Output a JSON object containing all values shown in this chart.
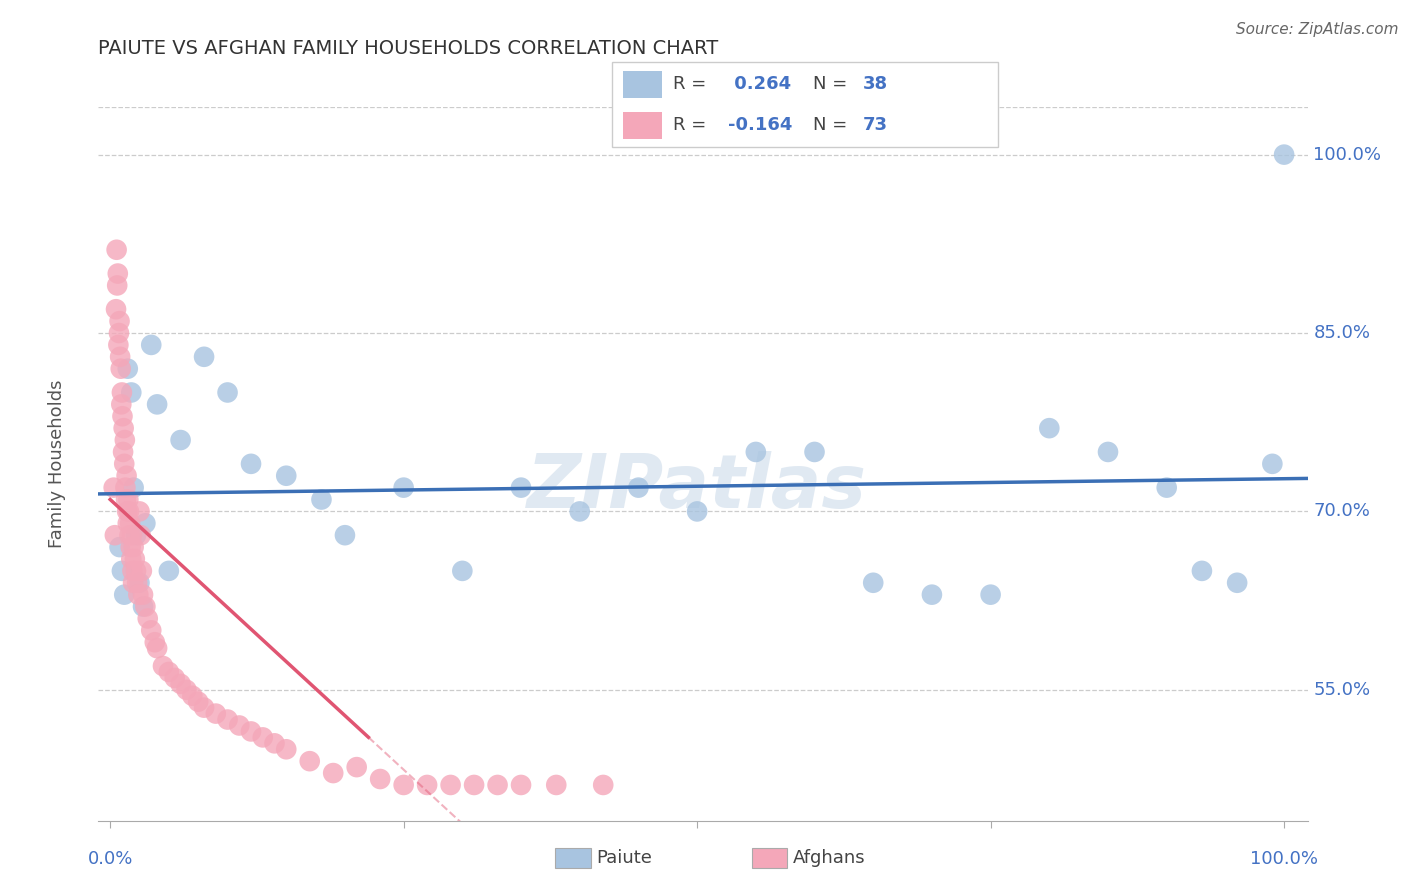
{
  "title": "PAIUTE VS AFGHAN FAMILY HOUSEHOLDS CORRELATION CHART",
  "source": "Source: ZipAtlas.com",
  "ylabel": "Family Households",
  "y_ticks": [
    55.0,
    70.0,
    85.0,
    100.0
  ],
  "paiute_R": 0.264,
  "paiute_N": 38,
  "afghan_R": -0.164,
  "afghan_N": 73,
  "paiute_color": "#a8c4e0",
  "afghan_color": "#f4a7b9",
  "paiute_line_color": "#3b6fb5",
  "afghan_line_color": "#e05572",
  "watermark": "ZIPatlas",
  "paiute_x": [
    0.8,
    1.0,
    1.2,
    1.5,
    1.8,
    2.0,
    2.2,
    2.5,
    2.8,
    3.0,
    3.5,
    4.0,
    5.0,
    6.0,
    8.0,
    10.0,
    12.0,
    15.0,
    18.0,
    20.0,
    25.0,
    30.0,
    35.0,
    40.0,
    45.0,
    50.0,
    55.0,
    60.0,
    65.0,
    70.0,
    75.0,
    80.0,
    85.0,
    90.0,
    93.0,
    96.0,
    99.0,
    100.0
  ],
  "paiute_y": [
    67.0,
    65.0,
    63.0,
    82.0,
    80.0,
    72.0,
    68.0,
    64.0,
    62.0,
    69.0,
    84.0,
    79.0,
    65.0,
    76.0,
    83.0,
    80.0,
    74.0,
    73.0,
    71.0,
    68.0,
    72.0,
    65.0,
    72.0,
    70.0,
    72.0,
    70.0,
    75.0,
    75.0,
    64.0,
    63.0,
    63.0,
    77.0,
    75.0,
    72.0,
    65.0,
    64.0,
    74.0,
    100.0
  ],
  "afghan_x": [
    0.3,
    0.4,
    0.5,
    0.55,
    0.6,
    0.65,
    0.7,
    0.75,
    0.8,
    0.85,
    0.9,
    0.95,
    1.0,
    1.05,
    1.1,
    1.15,
    1.2,
    1.25,
    1.3,
    1.35,
    1.4,
    1.45,
    1.5,
    1.55,
    1.6,
    1.65,
    1.7,
    1.75,
    1.8,
    1.85,
    1.9,
    1.95,
    2.0,
    2.1,
    2.2,
    2.3,
    2.4,
    2.5,
    2.6,
    2.7,
    2.8,
    3.0,
    3.2,
    3.5,
    3.8,
    4.0,
    4.5,
    5.0,
    5.5,
    6.0,
    6.5,
    7.0,
    7.5,
    8.0,
    9.0,
    10.0,
    11.0,
    12.0,
    13.0,
    14.0,
    15.0,
    17.0,
    19.0,
    21.0,
    23.0,
    25.0,
    27.0,
    29.0,
    31.0,
    33.0,
    35.0,
    38.0,
    42.0
  ],
  "afghan_y": [
    72.0,
    68.0,
    87.0,
    92.0,
    89.0,
    90.0,
    84.0,
    85.0,
    86.0,
    83.0,
    82.0,
    79.0,
    80.0,
    78.0,
    75.0,
    77.0,
    74.0,
    76.0,
    72.0,
    71.0,
    73.0,
    70.0,
    69.0,
    71.0,
    70.0,
    68.0,
    69.0,
    67.0,
    66.0,
    68.0,
    65.0,
    64.0,
    67.0,
    66.0,
    65.0,
    64.0,
    63.0,
    70.0,
    68.0,
    65.0,
    63.0,
    62.0,
    61.0,
    60.0,
    59.0,
    58.5,
    57.0,
    56.5,
    56.0,
    55.5,
    55.0,
    54.5,
    54.0,
    53.5,
    53.0,
    52.5,
    52.0,
    51.5,
    51.0,
    50.5,
    50.0,
    49.0,
    48.0,
    48.5,
    47.5,
    47.0,
    47.0,
    47.0,
    47.0,
    47.0,
    47.0,
    47.0,
    47.0
  ],
  "y_min": 44.0,
  "y_max": 104.0,
  "x_min": -1.0,
  "x_max": 102.0
}
